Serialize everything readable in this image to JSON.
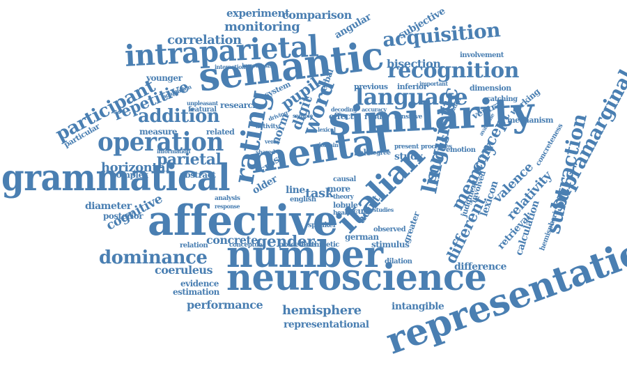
{
  "word_color": "#4a7fb2",
  "background": "#ffffff",
  "words": [
    "representation",
    "neuroscience",
    "number",
    "affective",
    "similarity",
    "grammatical",
    "semantic",
    "mental",
    "italian",
    "intraparietal",
    "rating",
    "operation",
    "language",
    "recognition",
    "acquisition",
    "linguistic",
    "supramarginal",
    "subtraction",
    "word",
    "dominance",
    "participant",
    "addition",
    "repetitive",
    "horizontal",
    "parietal",
    "memory",
    "concept",
    "different",
    "sulcus",
    "gender",
    "hemisphere",
    "performance",
    "coeruleus",
    "correlation",
    "monitoring",
    "comparison",
    "experiment",
    "subjective",
    "cognitive",
    "bisection",
    "relativity",
    "valence",
    "calculation",
    "retrieval",
    "diameter",
    "task",
    "adult",
    "older",
    "digit",
    "pupil",
    "norm",
    "stimulus",
    "german",
    "greater",
    "cross",
    "line",
    "locus",
    "role",
    "study",
    "evidence",
    "estimation",
    "posterior",
    "complex",
    "abstract",
    "angular",
    "research",
    "system",
    "previous",
    "inferior",
    "dimension",
    "involvement",
    "working",
    "mechanism",
    "ventral",
    "sensitive",
    "result",
    "effect",
    "verbal",
    "concrete",
    "relation",
    "measure",
    "related",
    "particular",
    "younger",
    "featural",
    "intangible",
    "representational",
    "difference",
    "dilation",
    "lexicon",
    "judgment",
    "involved",
    "concreteness",
    "hemispheric",
    "observed",
    "speaker",
    "healthy",
    "analysis",
    "response",
    "english",
    "causal",
    "activity",
    "shared",
    "information",
    "emotion",
    "present",
    "processes",
    "degree",
    "theory",
    "procedure",
    "arithmetic",
    "conceptual",
    "catching",
    "unpleasant",
    "interaction",
    "hypothesis",
    "adaptation",
    "decoding",
    "accuracy",
    "important",
    "distribution",
    "available",
    "sample",
    "driving",
    "domain",
    "lobule",
    "studies",
    "more",
    "verbs",
    "lexical"
  ]
}
